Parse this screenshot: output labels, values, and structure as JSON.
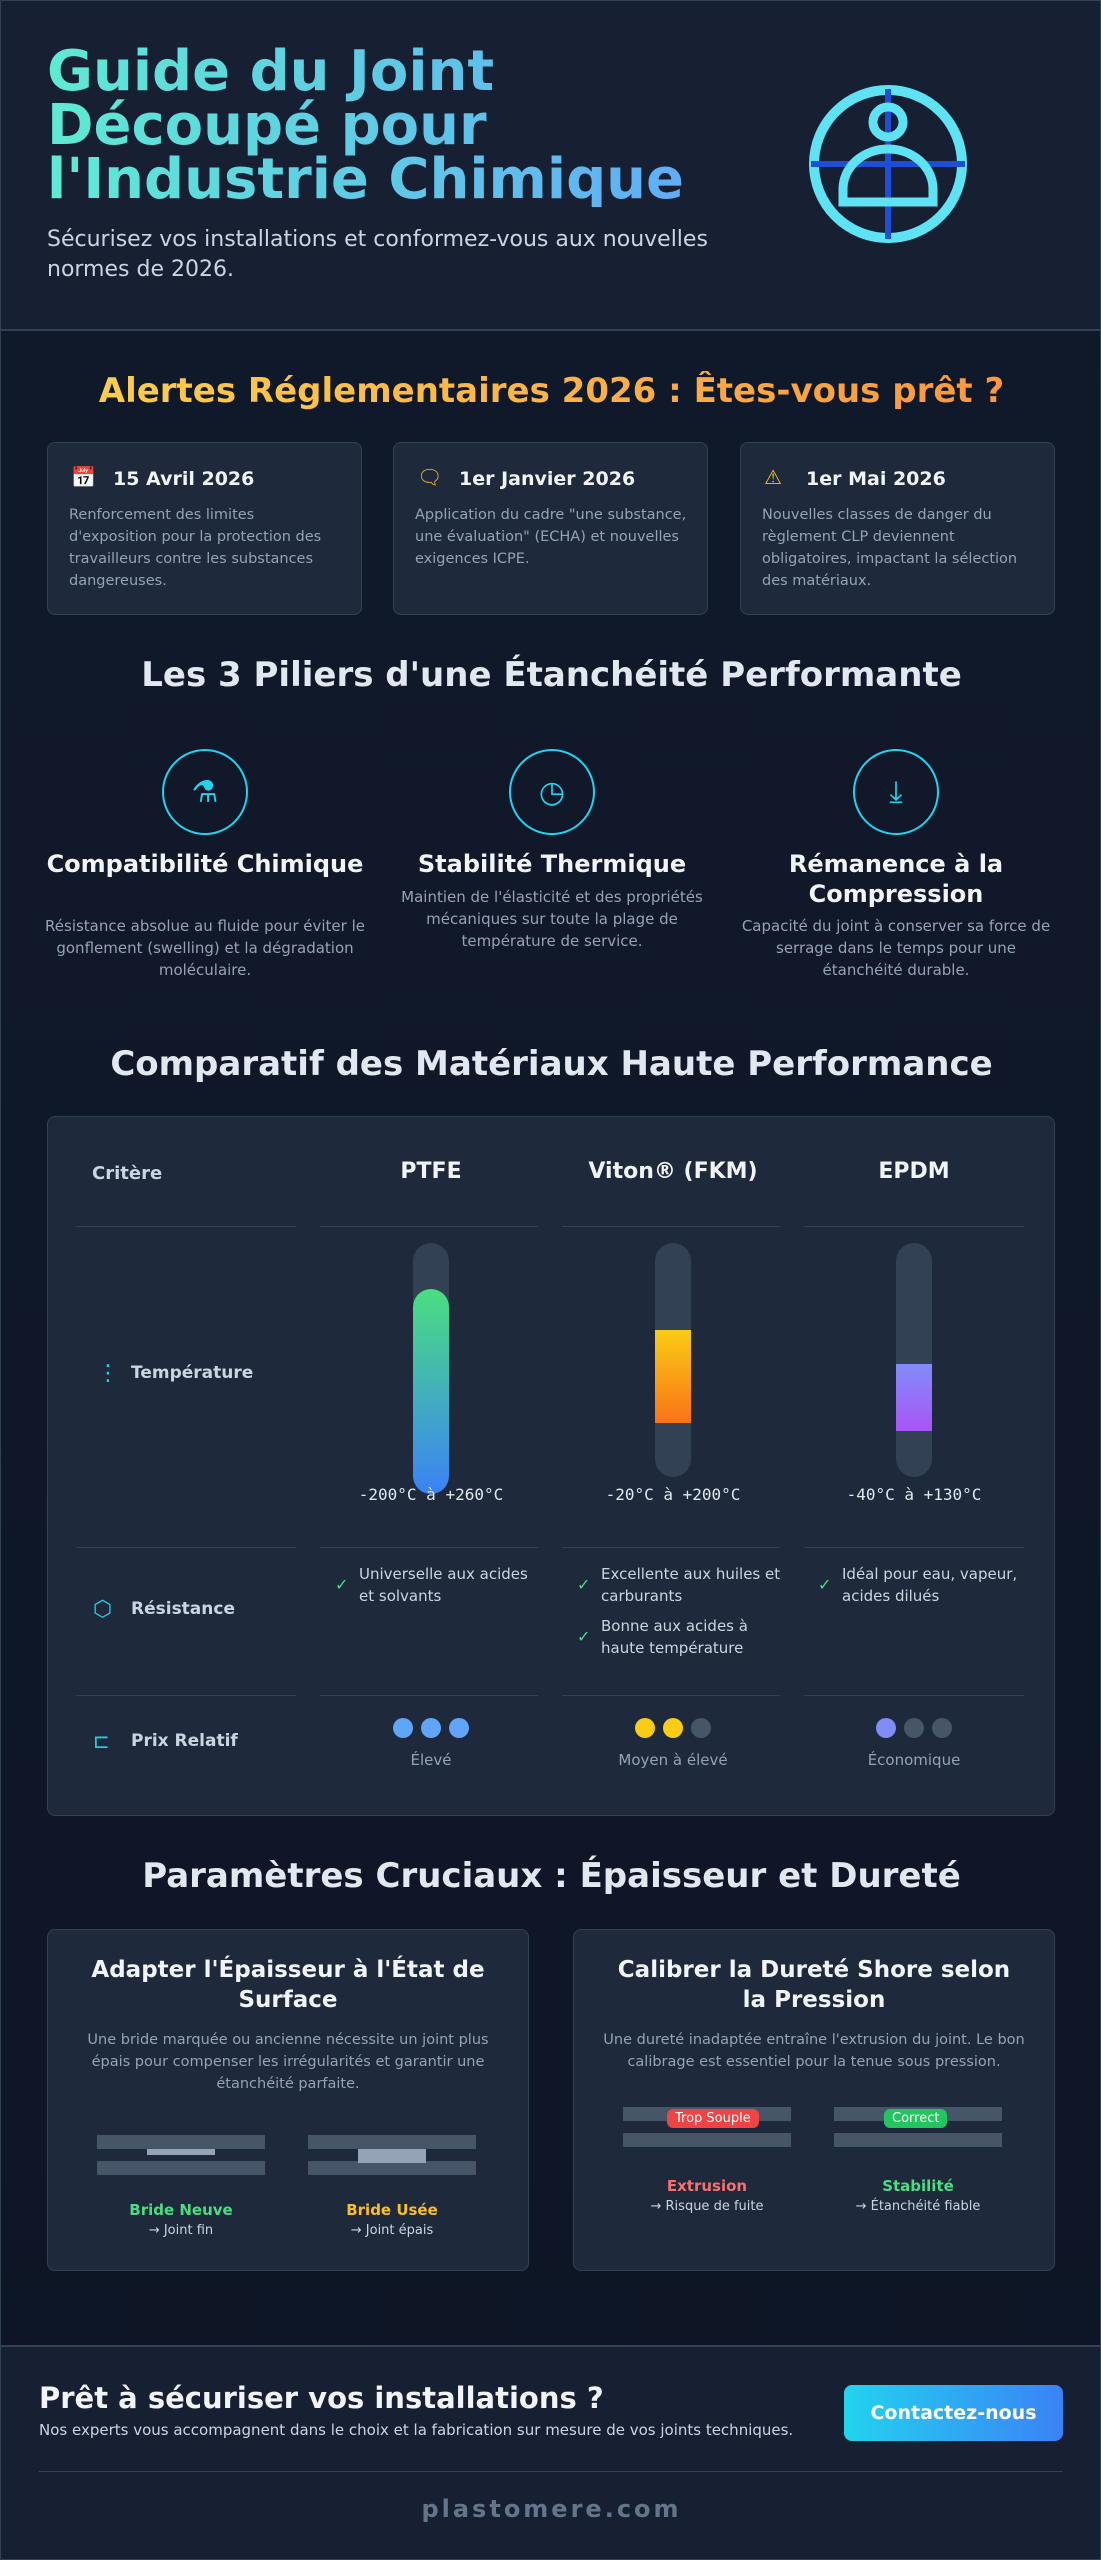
{
  "header": {
    "title": "Guide du Joint Découpé pour l'Industrie Chimique",
    "subtitle": "Sécurisez vos installations et conformez-vous aux nouvelles normes de 2026."
  },
  "alerts": {
    "title": "Alertes Réglementaires 2026 : Êtes-vous prêt ?",
    "items": [
      {
        "date": "15 Avril 2026",
        "text": "Renforcement des limites d'exposition pour la protection des travailleurs contre les substances dangereuses."
      },
      {
        "date": "1er Janvier 2026",
        "text": "Application du cadre \"une substance, une évaluation\" (ECHA) et nouvelles exigences ICPE."
      },
      {
        "date": "1er Mai 2026",
        "text": "Nouvelles classes de danger du règlement CLP deviennent obligatoires, impactant la sélection des matériaux."
      }
    ]
  },
  "pillars": {
    "title": "Les 3 Piliers d'une Étanchéité Performante",
    "items": [
      {
        "title": "Compatibilité Chimique",
        "text": "Résistance absolue au fluide pour éviter le gonflement (swelling) et la dégradation moléculaire."
      },
      {
        "title": "Stabilité Thermique",
        "text": "Maintien de l'élasticité et des propriétés mécaniques sur toute la plage de température de service."
      },
      {
        "title": "Rémanence à la Compression",
        "text": "Capacité du joint à conserver sa force de serrage dans le temps pour une étanchéité durable."
      }
    ]
  },
  "comparison": {
    "title": "Comparatif des Matériaux Haute Performance",
    "criteria_label": "Critère",
    "materials": [
      "PTFE",
      "Viton® (FKM)",
      "EPDM"
    ],
    "temperature": {
      "label": "Température",
      "ranges": [
        "-200°C à +260°C",
        "-20°C à +200°C",
        "-40°C à +130°C"
      ]
    },
    "resistance": {
      "label": "Résistance",
      "notes": [
        [
          "Universelle aux acides et solvants"
        ],
        [
          "Excellente aux huiles et carburants",
          "Bonne aux acides à haute température"
        ],
        [
          "Idéal pour eau, vapeur, acides dilués"
        ]
      ]
    },
    "price": {
      "label": "Prix Relatif",
      "levels": [
        "Élevé",
        "Moyen à élevé",
        "Économique"
      ]
    }
  },
  "parameters": {
    "title": "Paramètres Cruciaux : Épaisseur et Dureté",
    "cards": [
      {
        "title": "Adapter l'Épaisseur à l'État de Surface",
        "text": "Une bride marquée ou ancienne nécessite un joint plus épais pour compenser les irrégularités et garantir une étanchéité parfaite.",
        "examples": [
          {
            "label": "Bride Neuve",
            "note": "→ Joint fin"
          },
          {
            "label": "Bride Usée",
            "note": "→ Joint épais"
          }
        ]
      },
      {
        "title": "Calibrer la Dureté Shore selon la Pression",
        "text": "Une dureté inadaptée entraîne l'extrusion du joint. Le bon calibrage est essentiel pour la tenue sous pression.",
        "examples": [
          {
            "tag": "Trop Souple",
            "label": "Extrusion",
            "note": "→ Risque de fuite"
          },
          {
            "tag": "Correct",
            "label": "Stabilité",
            "note": "→ Étanchéité fiable"
          }
        ]
      }
    ]
  },
  "cta": {
    "title": "Prêt à sécuriser vos installations ?",
    "text": "Nos experts vous accompagnent dans le choix et la fabrication sur mesure de vos joints techniques.",
    "button": "Contactez-nous",
    "brand": "plastomere.com"
  }
}
